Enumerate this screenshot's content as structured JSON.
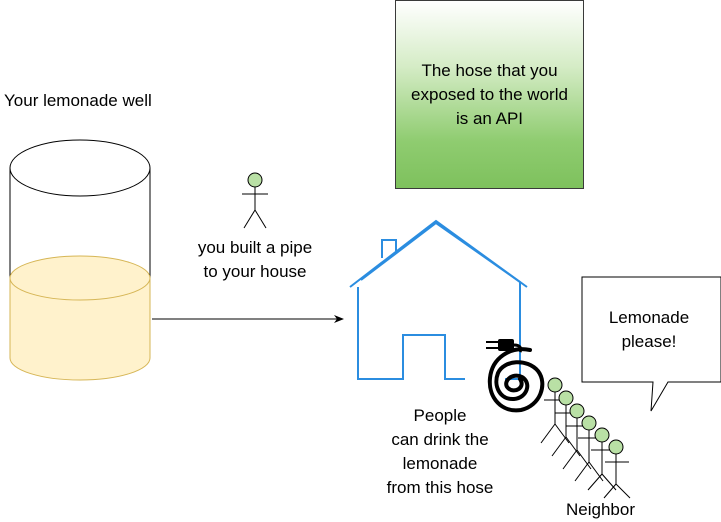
{
  "well": {
    "label": "Your lemonade well"
  },
  "builder": {
    "caption_line1": "you built a pipe",
    "caption_line2": "to your house"
  },
  "api_box": {
    "text": "The hose that you exposed to the world is an API",
    "fill_top": "#ffffff",
    "fill_bottom": "#7ec15d"
  },
  "house": {
    "caption_line1": "People",
    "caption_line2": "can drink the",
    "caption_line3": "lemonade",
    "caption_line4": "from this hose",
    "stroke_color": "#2b8de0"
  },
  "bubble": {
    "text": "Lemonade please!"
  },
  "neighbors": {
    "label": "Neighbor",
    "count": 6,
    "head_color": "#b9e0a5"
  },
  "colors": {
    "lemonade": "#fff2cc",
    "lemonade_stroke": "#d6b656"
  }
}
